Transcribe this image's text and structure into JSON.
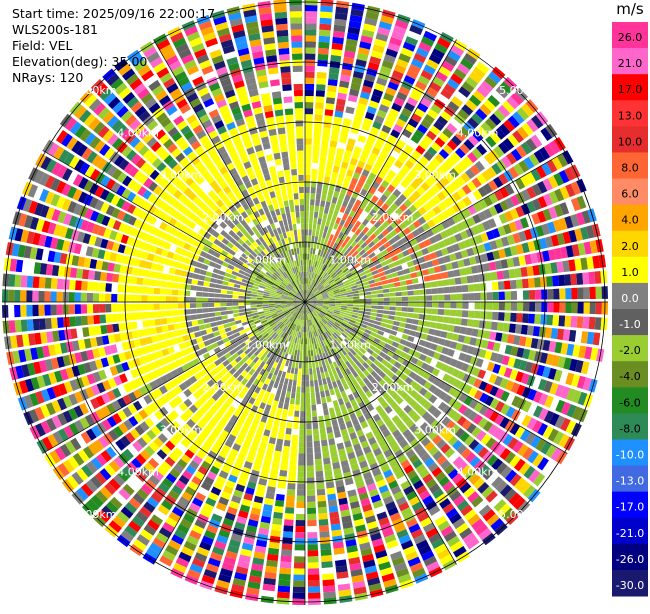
{
  "info": {
    "start_time": "Start time: 2025/09/16 22:00:17",
    "instrument": "WLS200s-181",
    "field": "Field: VEL",
    "elevation": "Elevation(deg): 35.00",
    "nrays": "NRays: 120"
  },
  "chart_data": {
    "type": "heatmap",
    "projection": "polar (PPI)",
    "field": "VEL",
    "units": "m/s",
    "nrays": 120,
    "range_rings": [
      {
        "label": "1.00km",
        "km": 1.0
      },
      {
        "label": "2.00km",
        "km": 2.0
      },
      {
        "label": "3.00km",
        "km": 3.0
      },
      {
        "label": "4.00km",
        "km": 4.0
      },
      {
        "label": "5.00km",
        "km": 5.0
      }
    ],
    "colorbar": {
      "title": "m/s",
      "ticks": [
        "26.0",
        "21.0",
        "17.0",
        "13.0",
        "10.0",
        "8.0",
        "6.0",
        "4.0",
        "2.0",
        "1.0",
        "0.0",
        "-1.0",
        "-2.0",
        "-4.0",
        "-6.0",
        "-8.0",
        "-10.0",
        "-13.0",
        "-17.0",
        "-21.0",
        "-26.0",
        "-30.0"
      ],
      "colors": [
        "#ff3399",
        "#ff66cc",
        "#ff0000",
        "#ff3333",
        "#e62e2e",
        "#ff6633",
        "#ff8c66",
        "#ffa500",
        "#ffd700",
        "#ffff00",
        "#808080",
        "#606060",
        "#9acd32",
        "#6b8e23",
        "#228b22",
        "#2e8b57",
        "#1e90ff",
        "#4169e1",
        "#0000ff",
        "#0000cd",
        "#000080",
        "#191970"
      ]
    },
    "pattern_note_free": true
  }
}
